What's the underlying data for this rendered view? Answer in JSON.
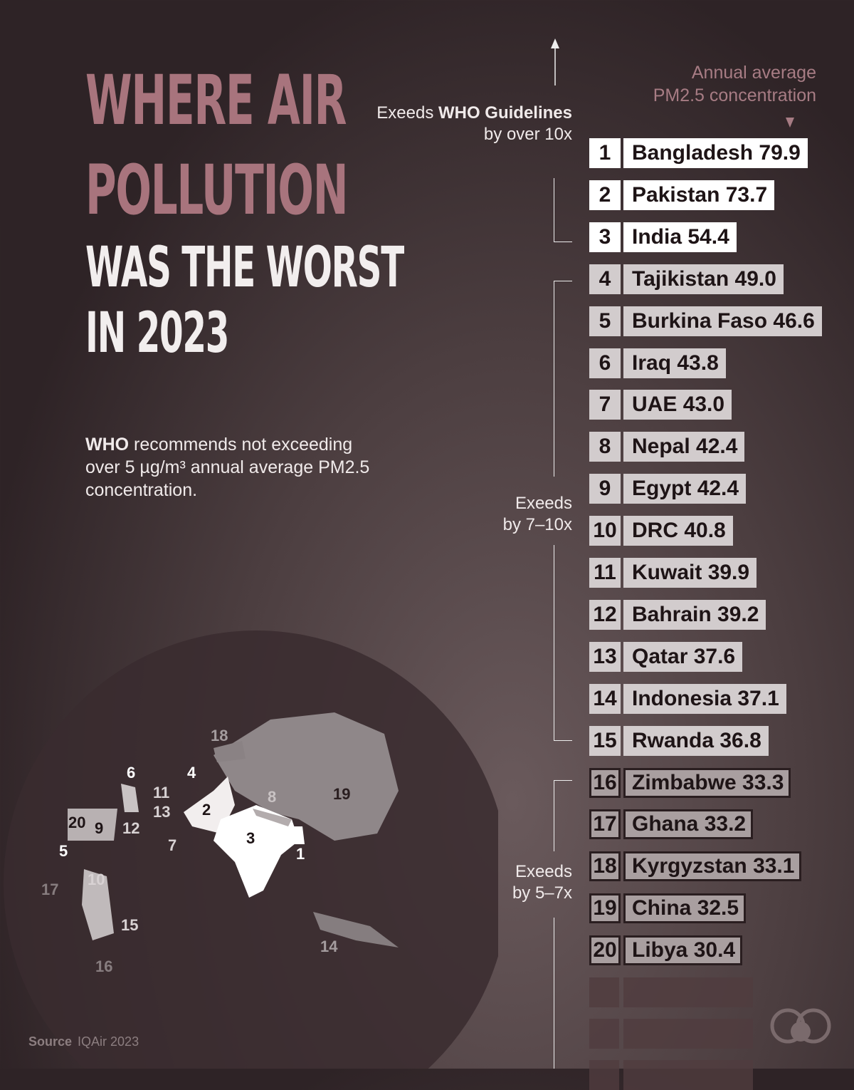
{
  "title": {
    "line1": "WHERE AIR",
    "line2": "POLLUTION",
    "line3": "WAS THE WORST",
    "line4": "IN 2023"
  },
  "note": {
    "bold": "WHO",
    "text": " recommends not exceeding over 5 µg/m³ annual average PM2.5 concentration."
  },
  "unit_label": {
    "line1": "Annual average",
    "line2": "PM2.5 concentration"
  },
  "groups": [
    {
      "pre": "Exeeds ",
      "bold": "WHO Guidelines",
      "post": "by over 10x"
    },
    {
      "line1": "Exeeds",
      "line2": "by 7–10x"
    },
    {
      "line1": "Exeeds",
      "line2": "by 5–7x"
    }
  ],
  "chart_data": {
    "type": "table",
    "title": "Where Air Pollution Was the Worst in 2023",
    "value_label": "Annual average PM2.5 concentration",
    "rows": [
      {
        "rank": "1",
        "country": "Bangladesh",
        "value": "79.9",
        "tier": "over 10x"
      },
      {
        "rank": "2",
        "country": "Pakistan",
        "value": "73.7",
        "tier": "over 10x"
      },
      {
        "rank": "3",
        "country": "India",
        "value": "54.4",
        "tier": "over 10x"
      },
      {
        "rank": "4",
        "country": "Tajikistan",
        "value": "49.0",
        "tier": "7–10x"
      },
      {
        "rank": "5",
        "country": "Burkina Faso",
        "value": "46.6",
        "tier": "7–10x"
      },
      {
        "rank": "6",
        "country": "Iraq",
        "value": "43.8",
        "tier": "7–10x"
      },
      {
        "rank": "7",
        "country": "UAE",
        "value": "43.0",
        "tier": "7–10x"
      },
      {
        "rank": "8",
        "country": "Nepal",
        "value": "42.4",
        "tier": "7–10x"
      },
      {
        "rank": "9",
        "country": "Egypt",
        "value": "42.4",
        "tier": "7–10x"
      },
      {
        "rank": "10",
        "country": "DRC",
        "value": "40.8",
        "tier": "7–10x"
      },
      {
        "rank": "11",
        "country": "Kuwait",
        "value": "39.9",
        "tier": "7–10x"
      },
      {
        "rank": "12",
        "country": "Bahrain",
        "value": "39.2",
        "tier": "7–10x"
      },
      {
        "rank": "13",
        "country": "Qatar",
        "value": "37.6",
        "tier": "7–10x"
      },
      {
        "rank": "14",
        "country": "Indonesia",
        "value": "37.1",
        "tier": "7–10x"
      },
      {
        "rank": "15",
        "country": "Rwanda",
        "value": "36.8",
        "tier": "7–10x"
      },
      {
        "rank": "16",
        "country": "Zimbabwe",
        "value": "33.3",
        "tier": "5–7x"
      },
      {
        "rank": "17",
        "country": "Ghana",
        "value": "33.2",
        "tier": "5–7x"
      },
      {
        "rank": "18",
        "country": "Kyrgyzstan",
        "value": "33.1",
        "tier": "5–7x"
      },
      {
        "rank": "19",
        "country": "China",
        "value": "32.5",
        "tier": "5–7x"
      },
      {
        "rank": "20",
        "country": "Libya",
        "value": "30.4",
        "tier": "5–7x"
      }
    ]
  },
  "colors": {
    "title_accent": "#a8747d",
    "tier1": "#ffffff",
    "tier2": "#d2cccd",
    "tier3": "#a99fa0",
    "background": "#2e2326"
  },
  "source": {
    "label": "Source",
    "value": "IQAir 2023"
  },
  "logo": "visual-capitalist-logo"
}
